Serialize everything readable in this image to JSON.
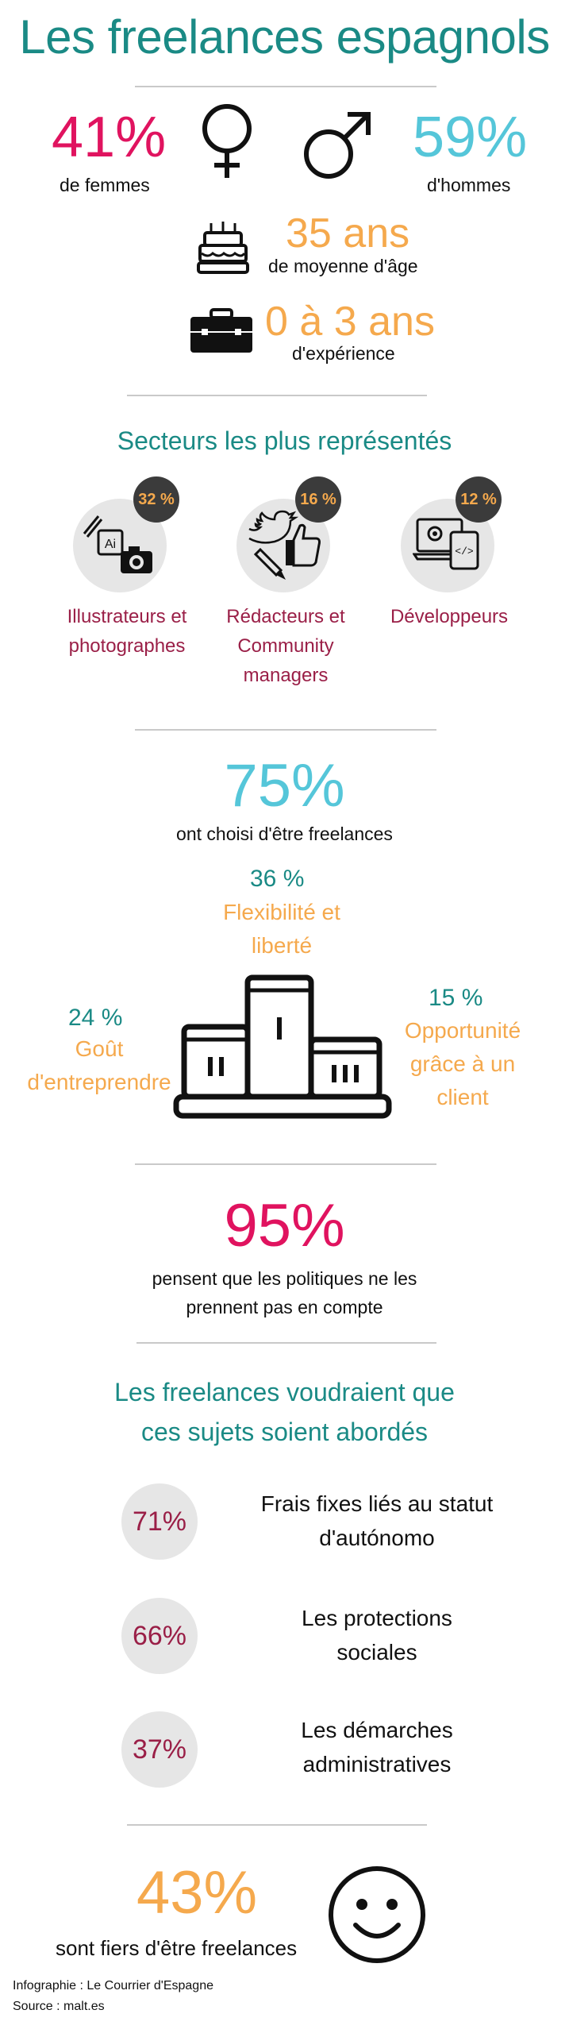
{
  "title": "Les freelances espagnols",
  "gender": {
    "women_pct": "41%",
    "women_label": "de femmes",
    "men_pct": "59%",
    "men_label": "d'hommes"
  },
  "age": {
    "value": "35 ans",
    "label": "de moyenne d'âge"
  },
  "experience": {
    "value": "0 à 3 ans",
    "label": "d'expérience"
  },
  "sectors": {
    "heading": "Secteurs les plus représentés",
    "items": [
      {
        "pct": "32 %",
        "label_lines": [
          "Illustrateurs et",
          "photographes"
        ],
        "icon": "art-photo-icon"
      },
      {
        "pct": "16 %",
        "label_lines": [
          "Rédacteurs et",
          "Community",
          "managers"
        ],
        "icon": "social-writing-icon"
      },
      {
        "pct": "12 %",
        "label_lines": [
          "Développeurs"
        ],
        "icon": "dev-devices-icon"
      }
    ]
  },
  "choice": {
    "pct": "75%",
    "label": "ont choisi d'être freelances",
    "reasons": [
      {
        "pct": "36 %",
        "lines": [
          "Flexibilité et",
          "liberté"
        ]
      },
      {
        "pct": "24 %",
        "lines": [
          "Goût",
          "d'entreprendre"
        ]
      },
      {
        "pct": "15 %",
        "lines": [
          "Opportunité",
          "grâce à un",
          "client"
        ]
      }
    ]
  },
  "politics": {
    "pct": "95%",
    "lines": [
      "pensent que les politiques ne les",
      "prennent pas en compte"
    ]
  },
  "issues": {
    "heading_lines": [
      "Les freelances voudraient que",
      "ces sujets soient abordés"
    ],
    "items": [
      {
        "pct": "71%",
        "lines": [
          "Frais fixes liés au statut",
          "d'autónomo"
        ]
      },
      {
        "pct": "66%",
        "lines": [
          "Les protections",
          "sociales"
        ]
      },
      {
        "pct": "37%",
        "lines": [
          "Les démarches",
          "administratives"
        ]
      }
    ]
  },
  "proud": {
    "pct": "43%",
    "label": "sont fiers d'être freelances"
  },
  "credits": {
    "infographic": "Infographie : Le Courrier d'Espagne",
    "source": "Source : malt.es"
  },
  "colors": {
    "teal": "#1a8a85",
    "magenta": "#e0135f",
    "cyan": "#55c6d9",
    "orange": "#f5a94d",
    "wine": "#9a1f47"
  }
}
